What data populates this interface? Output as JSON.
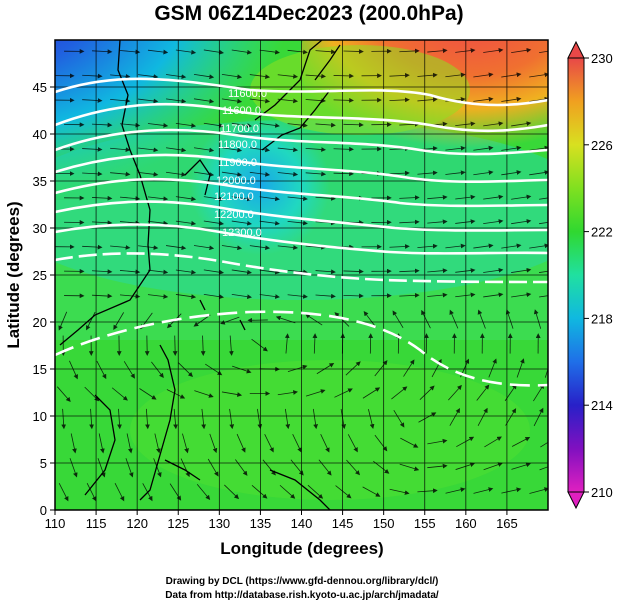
{
  "title": "GSM 06Z14Dec2023 (200.0hPa)",
  "xlabel": "Longitude (degrees)",
  "ylabel": "Latitude  (degrees)",
  "x_ticks": [
    "110",
    "115",
    "120",
    "125",
    "130",
    "135",
    "140",
    "145",
    "150",
    "155",
    "160",
    "165"
  ],
  "y_ticks": [
    "0",
    "5",
    "10",
    "15",
    "20",
    "25",
    "30",
    "35",
    "40",
    "45"
  ],
  "colorbar": {
    "ticks": [
      "210",
      "214",
      "218",
      "222",
      "226",
      "230"
    ],
    "colors": [
      "#e020c0",
      "#3a10c0",
      "#1f5fe0",
      "#10b0e8",
      "#20e0a8",
      "#40e040",
      "#80e020",
      "#c8e020",
      "#f0c020",
      "#f08020",
      "#e84040"
    ]
  },
  "contour_labels": [
    "11600.0",
    "11700.0",
    "11800.0",
    "11900.0",
    "12000.0",
    "12100.0",
    "12200.0",
    "12300.0",
    "11500.0"
  ],
  "credits": {
    "line1": "Drawing by DCL (https://www.gfd-dennou.org/library/dcl/)",
    "line2": "Data from http://database.rish.kyoto-u.ac.jp/arch/jmadata/"
  },
  "chart_data": {
    "type": "heatmap",
    "title": "GSM 06Z14Dec2023 (200.0hPa)",
    "xlabel": "Longitude (degrees)",
    "ylabel": "Latitude  (degrees)",
    "xlim": [
      110,
      170
    ],
    "ylim": [
      0,
      50
    ],
    "colorbar_range": [
      210,
      230
    ],
    "field": "temperature (shaded), geopotential height contours, wind streamlines",
    "contour_levels": [
      11500,
      11600,
      11700,
      11800,
      11900,
      12000,
      12100,
      12200,
      12300
    ]
  }
}
